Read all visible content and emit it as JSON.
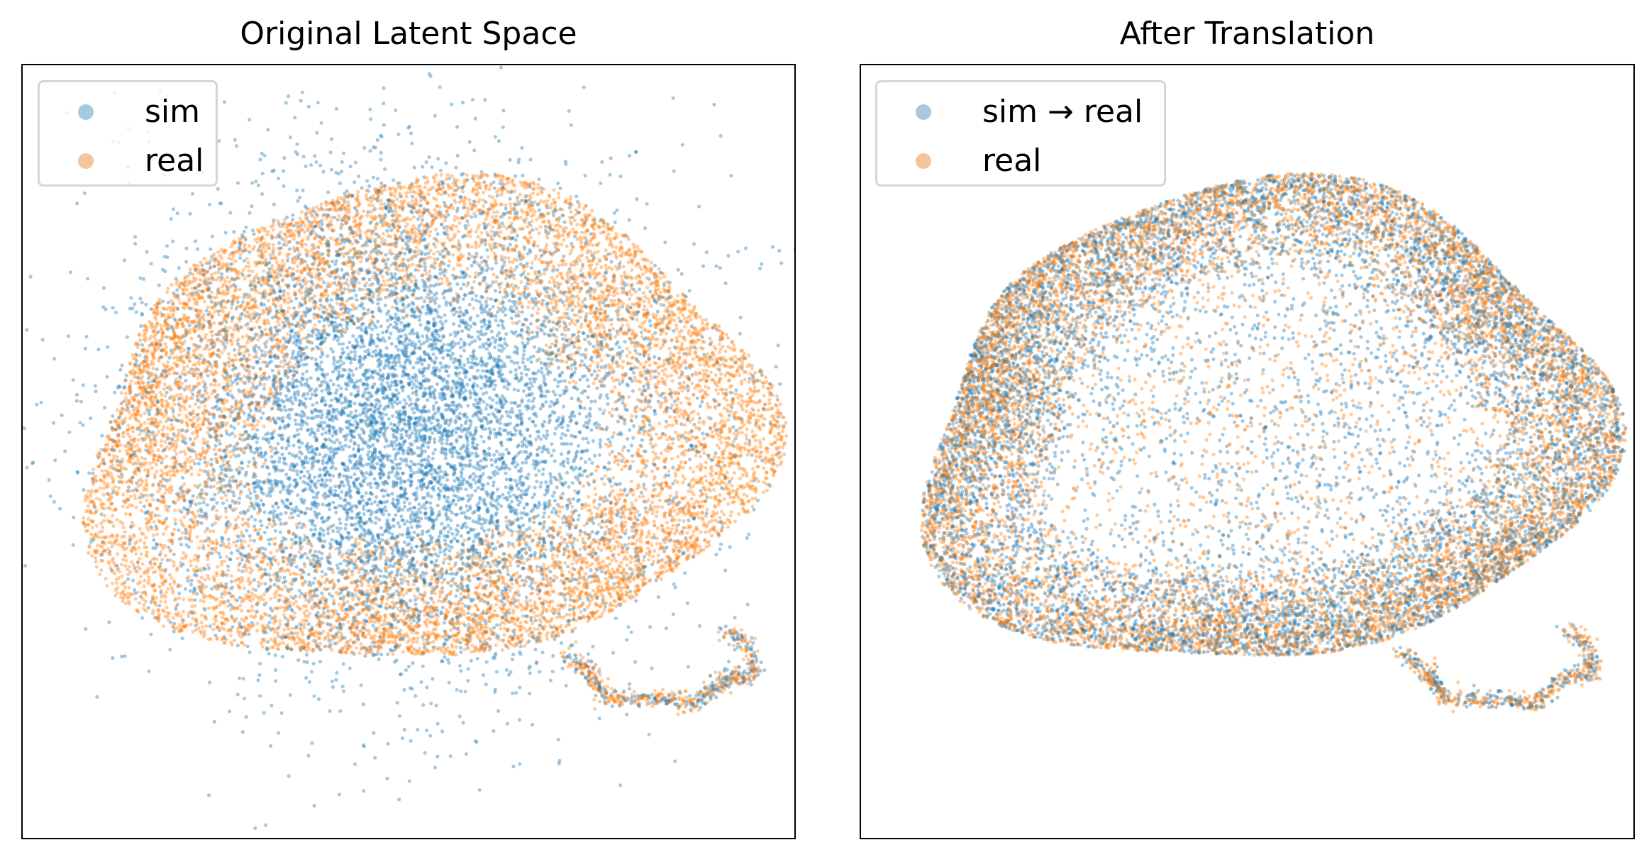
{
  "chart_data": [
    {
      "type": "scatter",
      "title": "Original Latent Space",
      "xlabel": "",
      "ylabel": "",
      "axis_ticks": "none",
      "grid": false,
      "legend_position": "top-left",
      "marker_alpha": 0.4,
      "series": [
        {
          "name": "sim",
          "color": "#1f77b4",
          "description_shape": "dense central blob plus a thin tail at lower right",
          "clusters": [
            {
              "cx": 0.5,
              "cy": 0.55,
              "rx": 0.2,
              "ry": 0.17,
              "share": 0.85
            },
            {
              "cx": 0.43,
              "cy": 0.35,
              "rx": 0.17,
              "ry": 0.22,
              "share": 0.15
            }
          ]
        },
        {
          "name": "real",
          "color": "#ff7f0e",
          "description_shape": "ring surrounding the sim blob, plus tail at lower right"
        }
      ]
    },
    {
      "type": "scatter",
      "title": "After Translation",
      "xlabel": "",
      "ylabel": "",
      "axis_ticks": "none",
      "grid": false,
      "legend_position": "top-left",
      "marker_alpha": 0.4,
      "series": [
        {
          "name": "sim → real",
          "color": "#1f77b4",
          "description_shape": "ring overlapping real, sparse interior"
        },
        {
          "name": "real",
          "color": "#ff7f0e",
          "description_shape": "ring with sparse interior, plus tail at lower right"
        }
      ]
    }
  ],
  "legend_colors": {
    "sim": "#a6c8e0",
    "real": "#f5c49c"
  }
}
